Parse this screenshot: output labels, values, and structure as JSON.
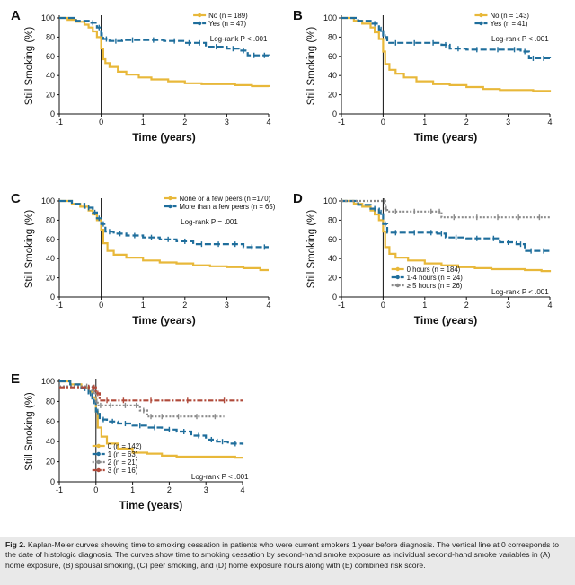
{
  "chart_data": [
    {
      "type": "line",
      "panel_label": "A",
      "xlabel": "Time (years)",
      "ylabel": "Still Smoking (%)",
      "xlim": [
        -1,
        4
      ],
      "ylim": [
        0,
        100
      ],
      "xticks": [
        "-1",
        "0",
        "1",
        "2",
        "3",
        "4"
      ],
      "yticks": [
        "0",
        "20",
        "40",
        "60",
        "80",
        "100"
      ],
      "annotation": "Log-rank P < .001",
      "legend_position": "top-right",
      "series": [
        {
          "name": "No (n = 189)",
          "color": "#e8b83a",
          "dash": "solid",
          "x": [
            -1,
            -0.8,
            -0.6,
            -0.4,
            -0.3,
            -0.2,
            -0.1,
            0,
            0.05,
            0.1,
            0.2,
            0.4,
            0.6,
            0.9,
            1.2,
            1.6,
            2.0,
            2.4,
            2.8,
            3.2,
            3.6,
            4.0
          ],
          "y": [
            100,
            98,
            96,
            93,
            90,
            86,
            80,
            68,
            57,
            53,
            49,
            44,
            41,
            38,
            36,
            34,
            32,
            31,
            31,
            30,
            29,
            28
          ]
        },
        {
          "name": "Yes (n = 47)",
          "color": "#1f6e9c",
          "dash": "dashed",
          "x": [
            -1,
            -0.6,
            -0.3,
            -0.1,
            0,
            0.05,
            0.2,
            0.5,
            1.0,
            1.5,
            2.0,
            2.2,
            2.5,
            3.0,
            3.3,
            3.5,
            3.8,
            4.0
          ],
          "y": [
            100,
            97,
            95,
            90,
            82,
            78,
            76,
            77,
            77,
            76,
            74,
            74,
            70,
            68,
            66,
            61,
            61,
            60
          ]
        }
      ]
    },
    {
      "type": "line",
      "panel_label": "B",
      "xlabel": "Time (years)",
      "ylabel": "Still Smoking (%)",
      "xlim": [
        -1,
        4
      ],
      "ylim": [
        0,
        100
      ],
      "xticks": [
        "-1",
        "0",
        "1",
        "2",
        "3",
        "4"
      ],
      "yticks": [
        "0",
        "20",
        "40",
        "60",
        "80",
        "100"
      ],
      "annotation": "Log-rank P < .001",
      "legend_position": "top-right",
      "series": [
        {
          "name": "No (n = 143)",
          "color": "#e8b83a",
          "dash": "solid",
          "x": [
            -1,
            -0.7,
            -0.5,
            -0.3,
            -0.2,
            -0.1,
            0,
            0.05,
            0.15,
            0.3,
            0.5,
            0.8,
            1.2,
            1.6,
            2.0,
            2.4,
            2.8,
            3.2,
            3.6,
            4.0
          ],
          "y": [
            100,
            97,
            94,
            90,
            85,
            78,
            65,
            52,
            46,
            42,
            38,
            34,
            31,
            30,
            28,
            26,
            25,
            25,
            24,
            23
          ]
        },
        {
          "name": "Yes (n = 41)",
          "color": "#1f6e9c",
          "dash": "dashed",
          "x": [
            -1,
            -0.6,
            -0.3,
            -0.1,
            0,
            0.1,
            0.5,
            1.0,
            1.4,
            1.6,
            2.0,
            2.5,
            3.0,
            3.3,
            3.5,
            3.7,
            4.0
          ],
          "y": [
            100,
            97,
            94,
            88,
            80,
            74,
            74,
            74,
            72,
            68,
            67,
            67,
            67,
            65,
            58,
            58,
            57
          ]
        }
      ]
    },
    {
      "type": "line",
      "panel_label": "C",
      "xlabel": "Time (years)",
      "ylabel": "Still Smoking (%)",
      "xlim": [
        -1,
        4
      ],
      "ylim": [
        0,
        100
      ],
      "xticks": [
        "-1",
        "0",
        "1",
        "2",
        "3",
        "4"
      ],
      "yticks": [
        "0",
        "20",
        "40",
        "60",
        "80",
        "100"
      ],
      "annotation": "Log-rank P = .001",
      "legend_position": "top-right",
      "series": [
        {
          "name": "None or a few peers (n =170)",
          "color": "#e8b83a",
          "dash": "solid",
          "x": [
            -1,
            -0.7,
            -0.5,
            -0.3,
            -0.2,
            -0.1,
            0,
            0.05,
            0.15,
            0.3,
            0.6,
            1.0,
            1.4,
            1.8,
            2.2,
            2.6,
            3.0,
            3.4,
            3.8,
            4.0
          ],
          "y": [
            100,
            97,
            94,
            90,
            86,
            80,
            70,
            56,
            48,
            44,
            41,
            38,
            36,
            35,
            33,
            32,
            31,
            30,
            28,
            28
          ]
        },
        {
          "name": "More than a few peers (n = 65)",
          "color": "#1f6e9c",
          "dash": "dashed",
          "x": [
            -1,
            -0.7,
            -0.4,
            -0.2,
            -0.1,
            0,
            0.1,
            0.3,
            0.6,
            1.0,
            1.4,
            1.8,
            2.2,
            2.6,
            3.0,
            3.4,
            3.8,
            4.0
          ],
          "y": [
            100,
            97,
            93,
            88,
            82,
            76,
            68,
            66,
            64,
            62,
            60,
            58,
            55,
            55,
            55,
            52,
            52,
            52
          ]
        }
      ]
    },
    {
      "type": "line",
      "panel_label": "D",
      "xlabel": "Time (years)",
      "ylabel": "Still Smoking (%)",
      "xlim": [
        -1,
        4
      ],
      "ylim": [
        0,
        100
      ],
      "xticks": [
        "-1",
        "0",
        "1",
        "2",
        "3",
        "4"
      ],
      "yticks": [
        "0",
        "20",
        "40",
        "60",
        "80",
        "100"
      ],
      "annotation": "Log-rank P < .001",
      "legend_position": "bottom-left",
      "series": [
        {
          "name": "0 hours (n = 184)",
          "color": "#e8b83a",
          "dash": "solid",
          "x": [
            -1,
            -0.7,
            -0.5,
            -0.3,
            -0.2,
            -0.1,
            0,
            0.05,
            0.15,
            0.3,
            0.6,
            1.0,
            1.4,
            1.8,
            2.2,
            2.6,
            3.0,
            3.4,
            3.8,
            4.0
          ],
          "y": [
            100,
            97,
            94,
            90,
            86,
            80,
            68,
            52,
            45,
            41,
            38,
            35,
            33,
            31,
            30,
            29,
            29,
            28,
            27,
            26
          ]
        },
        {
          "name": "1-4 hours (n = 24)",
          "color": "#1f6e9c",
          "dash": "dashed",
          "x": [
            -1,
            -0.6,
            -0.3,
            -0.1,
            0,
            0.1,
            0.5,
            1.0,
            1.3,
            1.5,
            2.0,
            2.5,
            2.8,
            3.2,
            3.4,
            3.7,
            4.0
          ],
          "y": [
            100,
            96,
            92,
            88,
            76,
            67,
            67,
            67,
            66,
            62,
            61,
            61,
            57,
            55,
            48,
            48,
            47
          ]
        },
        {
          "name": "≥ 5 hours (n = 26)",
          "color": "#8a8a8a",
          "dash": "dotted",
          "x": [
            -1,
            -0.5,
            0,
            0.05,
            0.1,
            0.5,
            1.0,
            1.3,
            1.4,
            2.0,
            2.5,
            3.0,
            3.5,
            4.0
          ],
          "y": [
            100,
            100,
            100,
            92,
            89,
            89,
            89,
            89,
            83,
            83,
            83,
            83,
            83,
            83
          ]
        }
      ]
    },
    {
      "type": "line",
      "panel_label": "E",
      "xlabel": "Time (years)",
      "ylabel": "Still Smoking (%)",
      "xlim": [
        -1,
        4
      ],
      "ylim": [
        0,
        100
      ],
      "xticks": [
        "-1",
        "0",
        "1",
        "2",
        "3",
        "4"
      ],
      "yticks": [
        "0",
        "20",
        "40",
        "60",
        "80",
        "100"
      ],
      "annotation": "Log-rank P < .001",
      "legend_position": "bottom-left",
      "series": [
        {
          "name": "0 (n = 142)",
          "color": "#e8b83a",
          "dash": "solid",
          "x": [
            -1,
            -0.7,
            -0.4,
            -0.2,
            -0.1,
            0,
            0.05,
            0.15,
            0.3,
            0.6,
            1.0,
            1.4,
            1.8,
            2.2,
            2.6,
            3.0,
            3.4,
            3.8,
            4.0
          ],
          "y": [
            100,
            97,
            94,
            90,
            84,
            70,
            54,
            45,
            38,
            33,
            29,
            28,
            26,
            25,
            25,
            25,
            25,
            24,
            24
          ]
        },
        {
          "name": "1 (n = 63)",
          "color": "#1f6e9c",
          "dash": "dashed",
          "x": [
            -1,
            -0.7,
            -0.4,
            -0.2,
            -0.1,
            0,
            0.1,
            0.3,
            0.6,
            1.0,
            1.4,
            1.8,
            2.2,
            2.6,
            3.0,
            3.3,
            3.6,
            4.0
          ],
          "y": [
            100,
            97,
            93,
            88,
            80,
            70,
            62,
            60,
            58,
            56,
            54,
            52,
            50,
            46,
            42,
            40,
            38,
            37
          ]
        },
        {
          "name": "2 (n = 21)",
          "color": "#8a8a8a",
          "dash": "dotted",
          "x": [
            -1,
            -0.7,
            -0.4,
            -0.1,
            0,
            0.05,
            0.2,
            0.6,
            1.0,
            1.2,
            1.4,
            1.6,
            2.0,
            2.5,
            3.0,
            3.5
          ],
          "y": [
            95,
            95,
            95,
            90,
            80,
            76,
            76,
            76,
            76,
            71,
            65,
            65,
            65,
            65,
            65,
            65
          ]
        },
        {
          "name": "3 (n = 16)",
          "color": "#b04a3a",
          "dash": "dashdot",
          "x": [
            -1,
            -0.6,
            -0.3,
            -0.1,
            0,
            0.1,
            0.5,
            1.0,
            2.0,
            3.0,
            4.0
          ],
          "y": [
            94,
            94,
            94,
            94,
            88,
            81,
            81,
            81,
            81,
            81,
            81
          ]
        }
      ]
    }
  ],
  "caption": {
    "label": "Fig 2.",
    "text": "Kaplan-Meier curves showing time to smoking cessation in patients who were current smokers 1 year before diagnosis. The vertical line at 0 corresponds to the date of histologic diagnosis. The curves show time to smoking cessation by second-hand smoke exposure as individual second-hand smoke variables in (A) home exposure, (B) spousal smoking, (C) peer smoking, and (D) home exposure hours along with (E) combined risk score."
  }
}
